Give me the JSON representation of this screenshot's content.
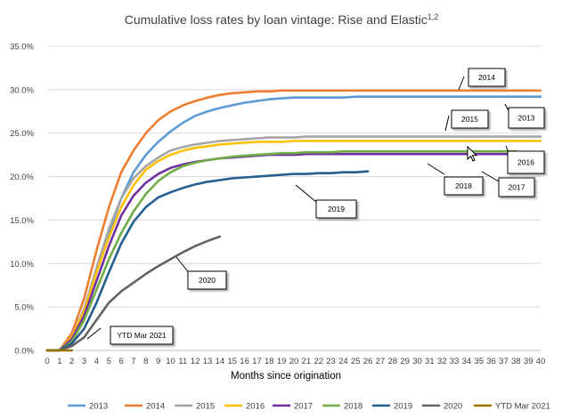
{
  "chart_data": {
    "type": "line",
    "title": "Cumulative loss rates by loan vintage: Rise and Elastic",
    "title_superscript": "1,2",
    "xlabel": "Months since origination",
    "ylabel": "",
    "xlim": [
      0,
      40
    ],
    "ylim": [
      0,
      35
    ],
    "y_ticks": [
      "0.0%",
      "5.0%",
      "10.0%",
      "15.0%",
      "20.0%",
      "25.0%",
      "30.0%",
      "35.0%"
    ],
    "x_ticks": [
      "0",
      "1",
      "2",
      "3",
      "4",
      "5",
      "6",
      "7",
      "8",
      "9",
      "10",
      "11",
      "12",
      "13",
      "14",
      "15",
      "16",
      "17",
      "18",
      "19",
      "20",
      "21",
      "22",
      "23",
      "24",
      "25",
      "26",
      "27",
      "28",
      "29",
      "30",
      "31",
      "32",
      "33",
      "34",
      "35",
      "36",
      "37",
      "38",
      "39",
      "40"
    ],
    "grid": true,
    "legend_position": "bottom",
    "series": [
      {
        "name": "2013",
        "color": "#5B9BD5",
        "values": [
          0,
          0,
          1.5,
          4.5,
          9,
          13.5,
          17.5,
          20.5,
          22.5,
          24,
          25.2,
          26.2,
          27,
          27.5,
          27.9,
          28.2,
          28.5,
          28.7,
          28.9,
          29,
          29.1,
          29.1,
          29.1,
          29.1,
          29.1,
          29.2,
          29.2,
          29.2,
          29.2,
          29.2,
          29.2,
          29.2,
          29.2,
          29.2,
          29.2,
          29.2,
          29.2,
          29.2,
          29.2,
          29.2,
          29.2
        ]
      },
      {
        "name": "2014",
        "color": "#ED7D31",
        "values": [
          0,
          0,
          2,
          6,
          11.5,
          16.5,
          20.5,
          23,
          25,
          26.5,
          27.5,
          28.2,
          28.7,
          29.1,
          29.4,
          29.6,
          29.7,
          29.8,
          29.8,
          29.9,
          29.9,
          29.9,
          29.9,
          29.9,
          29.9,
          29.9,
          29.9,
          29.9,
          29.9,
          29.9,
          29.9,
          29.9,
          29.9,
          29.9,
          29.9,
          29.9,
          29.9,
          29.9,
          29.9,
          29.9,
          29.9
        ]
      },
      {
        "name": "2015",
        "color": "#A5A5A5",
        "values": [
          0,
          0,
          1.5,
          4.8,
          9.5,
          14,
          17.5,
          19.8,
          21.2,
          22.2,
          23,
          23.4,
          23.7,
          23.9,
          24.1,
          24.2,
          24.3,
          24.4,
          24.5,
          24.5,
          24.5,
          24.6,
          24.6,
          24.6,
          24.6,
          24.6,
          24.6,
          24.6,
          24.6,
          24.6,
          24.6,
          24.6,
          24.6,
          24.6,
          24.6,
          24.6,
          24.6,
          24.6,
          24.6,
          24.6,
          24.6
        ]
      },
      {
        "name": "2016",
        "color": "#FFC000",
        "values": [
          0,
          0,
          1.5,
          4.5,
          9,
          13,
          16.5,
          19,
          20.8,
          21.8,
          22.5,
          23,
          23.3,
          23.5,
          23.7,
          23.8,
          23.9,
          24,
          24,
          24,
          24.1,
          24.1,
          24.1,
          24.1,
          24.1,
          24.1,
          24.1,
          24.1,
          24.1,
          24.1,
          24.1,
          24.1,
          24.1,
          24.1,
          24.1,
          24.1,
          24.1,
          24.1,
          24.1,
          24.1,
          24.1
        ]
      },
      {
        "name": "2017",
        "color": "#7030A0",
        "values": [
          0,
          0,
          1.3,
          4,
          8,
          12,
          15.5,
          17.8,
          19.3,
          20.3,
          21,
          21.4,
          21.7,
          21.9,
          22.1,
          22.2,
          22.3,
          22.4,
          22.5,
          22.5,
          22.5,
          22.6,
          22.6,
          22.6,
          22.6,
          22.6,
          22.6,
          22.6,
          22.6,
          22.6,
          22.6,
          22.6,
          22.6,
          22.6,
          22.6,
          22.6,
          22.6,
          22.6,
          22.6,
          22.6,
          22.6
        ]
      },
      {
        "name": "2018",
        "color": "#70AD47",
        "values": [
          0,
          0,
          1,
          3.5,
          7,
          10.5,
          13.5,
          16,
          18,
          19.5,
          20.5,
          21.2,
          21.6,
          21.9,
          22.1,
          22.3,
          22.4,
          22.5,
          22.6,
          22.7,
          22.7,
          22.8,
          22.8,
          22.8,
          22.9,
          22.9,
          22.9,
          22.9,
          22.9,
          22.9,
          22.9,
          22.9,
          22.9,
          22.9,
          22.9,
          22.9,
          22.9,
          22.9,
          22.9
        ]
      },
      {
        "name": "2019",
        "color": "#255E91",
        "values": [
          0,
          0,
          0.8,
          2.5,
          5.5,
          9,
          12.3,
          14.8,
          16.5,
          17.6,
          18.2,
          18.7,
          19.1,
          19.4,
          19.6,
          19.8,
          19.9,
          20,
          20.1,
          20.2,
          20.3,
          20.3,
          20.4,
          20.4,
          20.5,
          20.5,
          20.6
        ]
      },
      {
        "name": "2020",
        "color": "#636363",
        "values": [
          0,
          0,
          0.5,
          1.5,
          3.5,
          5.5,
          6.8,
          7.8,
          8.8,
          9.7,
          10.5,
          11.3,
          12,
          12.6,
          13.1
        ]
      },
      {
        "name": "YTD Mar 2021",
        "color": "#997300",
        "values": [
          0,
          0,
          0
        ]
      }
    ],
    "annotations": [
      {
        "label": "2014",
        "series": "2014"
      },
      {
        "label": "2013",
        "series": "2013"
      },
      {
        "label": "2015",
        "series": "2015"
      },
      {
        "label": "2016",
        "series": "2016"
      },
      {
        "label": "2017",
        "series": "2017"
      },
      {
        "label": "2018",
        "series": "2018"
      },
      {
        "label": "2019",
        "series": "2019"
      },
      {
        "label": "2020",
        "series": "2020"
      },
      {
        "label": "YTD Mar 2021",
        "series": "YTD Mar 2021"
      }
    ]
  }
}
